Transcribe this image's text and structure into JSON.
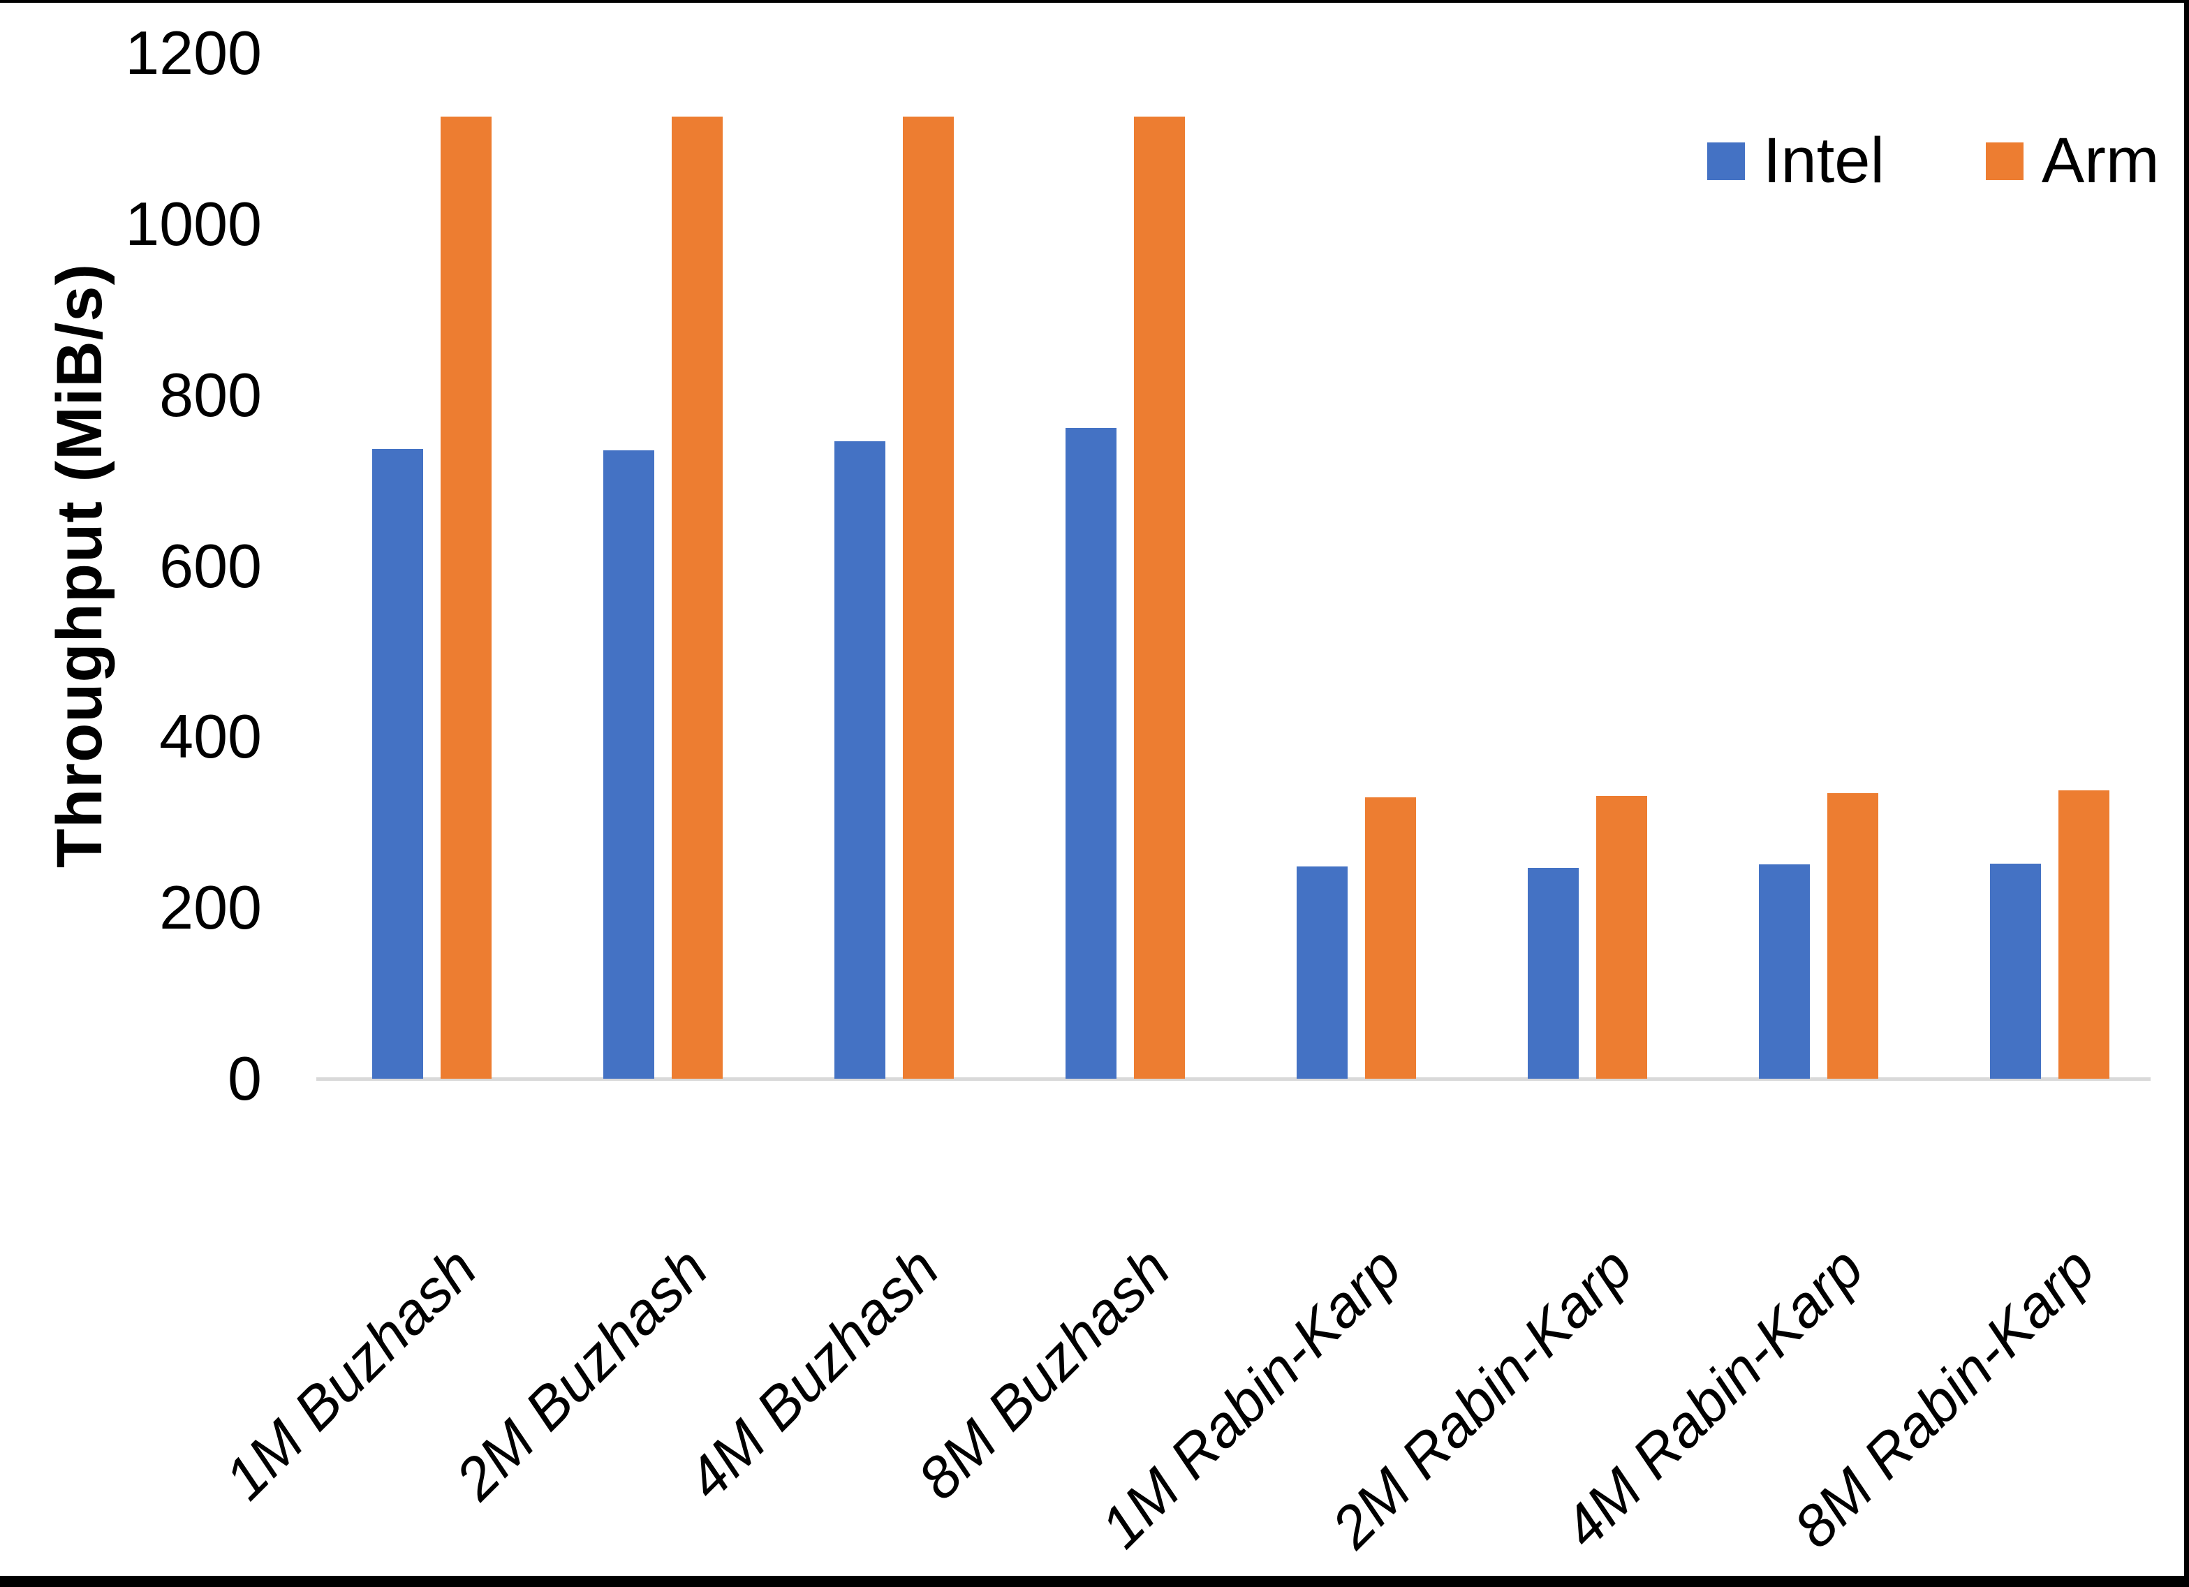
{
  "chart_data": {
    "type": "bar",
    "title": "",
    "categories": [
      "1M Buzhash",
      "2M Buzhash",
      "4M Buzhash",
      "8M Buzhash",
      "1M Rabin-Karp",
      "2M Rabin-Karp",
      "4M Rabin-Karp",
      "8M Rabin-Karp"
    ],
    "series": [
      {
        "name": "Intel",
        "color": "#4472C4",
        "values": [
          737,
          735,
          746,
          761,
          248,
          247,
          251,
          252
        ]
      },
      {
        "name": "Arm",
        "color": "#ED7D31",
        "values": [
          1126,
          1126,
          1126,
          1126,
          329,
          331,
          334,
          337
        ]
      }
    ],
    "xlabel": "",
    "ylabel": "Throughput (MiB/s)",
    "ylim": [
      0,
      1200
    ],
    "yticks": [
      0,
      200,
      400,
      600,
      800,
      1000,
      1200
    ],
    "grid": false,
    "legend_position": "top-right",
    "axis_line_color": "#D9D9D9",
    "text_color": "#000000"
  }
}
